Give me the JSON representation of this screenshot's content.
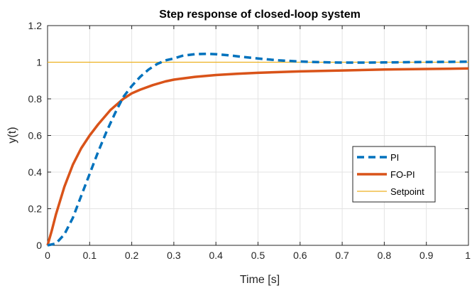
{
  "chart_data": {
    "type": "line",
    "title": "Step response of closed-loop system",
    "xlabel": "Time [s]",
    "ylabel": "y(t)",
    "xlim": [
      0,
      1
    ],
    "ylim": [
      0,
      1.2
    ],
    "x_ticks": [
      0,
      0.1,
      0.2,
      0.3,
      0.4,
      0.5,
      0.6,
      0.7,
      0.8,
      0.9,
      1
    ],
    "x_tick_labels": [
      "0",
      "0.1",
      "0.2",
      "0.3",
      "0.4",
      "0.5",
      "0.6",
      "0.7",
      "0.8",
      "0.9",
      "1"
    ],
    "y_ticks": [
      0,
      0.2,
      0.4,
      0.6,
      0.8,
      1,
      1.2
    ],
    "y_tick_labels": [
      "0",
      "0.2",
      "0.4",
      "0.6",
      "0.8",
      "1",
      "1.2"
    ],
    "grid": true,
    "legend_position": "lower-right",
    "series": [
      {
        "name": "PI",
        "color": "#0072BD",
        "style": "dashed",
        "x": [
          0,
          0.02,
          0.04,
          0.06,
          0.08,
          0.1,
          0.12,
          0.14,
          0.16,
          0.18,
          0.2,
          0.22,
          0.24,
          0.26,
          0.28,
          0.3,
          0.32,
          0.35,
          0.38,
          0.4,
          0.43,
          0.46,
          0.5,
          0.55,
          0.6,
          0.65,
          0.7,
          0.75,
          0.8,
          0.85,
          0.9,
          0.95,
          1.0
        ],
        "y": [
          0,
          0.01,
          0.06,
          0.15,
          0.27,
          0.39,
          0.51,
          0.62,
          0.72,
          0.81,
          0.87,
          0.92,
          0.96,
          0.99,
          1.01,
          1.02,
          1.035,
          1.044,
          1.046,
          1.044,
          1.038,
          1.03,
          1.02,
          1.01,
          1.004,
          1.0,
          0.998,
          0.998,
          0.999,
          1.0,
          1.001,
          1.002,
          1.003
        ]
      },
      {
        "name": "FO-PI",
        "color": "#D95319",
        "style": "solid",
        "x": [
          0,
          0.01,
          0.02,
          0.04,
          0.06,
          0.08,
          0.1,
          0.12,
          0.15,
          0.18,
          0.2,
          0.22,
          0.25,
          0.28,
          0.3,
          0.35,
          0.4,
          0.45,
          0.5,
          0.6,
          0.7,
          0.8,
          0.9,
          1.0
        ],
        "y": [
          0,
          0.08,
          0.17,
          0.32,
          0.44,
          0.53,
          0.6,
          0.66,
          0.74,
          0.8,
          0.83,
          0.85,
          0.875,
          0.895,
          0.905,
          0.92,
          0.93,
          0.937,
          0.942,
          0.95,
          0.955,
          0.96,
          0.963,
          0.966
        ]
      },
      {
        "name": "Setpoint",
        "color": "#EDB120",
        "style": "solid",
        "x": [
          0,
          1
        ],
        "y": [
          1,
          1
        ]
      }
    ]
  }
}
